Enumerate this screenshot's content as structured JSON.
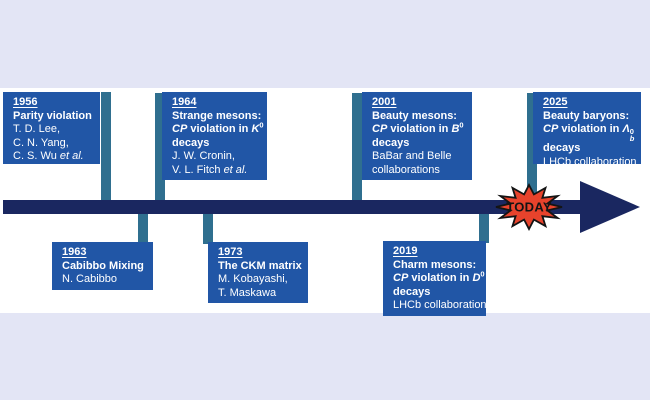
{
  "timeline": {
    "today_label": "TODAY",
    "boxes": [
      {
        "id": "1956",
        "position": "above",
        "year": "1956",
        "lines": [
          [
            {
              "t": "1956",
              "s": "u"
            }
          ],
          [
            {
              "t": "Parity violation",
              "s": "b"
            }
          ],
          [
            {
              "t": "T. D. Lee,",
              "s": "r"
            }
          ],
          [
            {
              "t": "C. N. Yang,",
              "s": "r"
            }
          ],
          [
            {
              "t": "C. S. Wu ",
              "s": "r"
            },
            {
              "t": "et al.",
              "s": "ri"
            }
          ]
        ]
      },
      {
        "id": "1963",
        "position": "below",
        "year": "1963",
        "lines": [
          [
            {
              "t": "1963",
              "s": "u"
            }
          ],
          [
            {
              "t": "Cabibbo Mixing",
              "s": "b"
            }
          ],
          [
            {
              "t": "N. Cabibbo",
              "s": "r"
            }
          ]
        ]
      },
      {
        "id": "1964",
        "position": "above",
        "year": "1964",
        "lines": [
          [
            {
              "t": "1964",
              "s": "u"
            }
          ],
          [
            {
              "t": "Strange mesons:",
              "s": "b"
            }
          ],
          [
            {
              "t": "CP",
              "s": "bi"
            },
            {
              "t": " violation in ",
              "s": "b"
            },
            {
              "t": "K",
              "s": "bi"
            },
            {
              "t": "0",
              "s": "sup"
            }
          ],
          [
            {
              "t": "decays",
              "s": "b"
            }
          ],
          [
            {
              "t": "J. W. Cronin,",
              "s": "r"
            }
          ],
          [
            {
              "t": "V. L. Fitch ",
              "s": "r"
            },
            {
              "t": "et al.",
              "s": "ri"
            }
          ]
        ]
      },
      {
        "id": "1973",
        "position": "below",
        "year": "1973",
        "lines": [
          [
            {
              "t": "1973",
              "s": "u"
            }
          ],
          [
            {
              "t": "The CKM matrix",
              "s": "b"
            }
          ],
          [
            {
              "t": "M. Kobayashi,",
              "s": "r"
            }
          ],
          [
            {
              "t": "T. Maskawa",
              "s": "r"
            }
          ]
        ]
      },
      {
        "id": "2001",
        "position": "above",
        "year": "2001",
        "lines": [
          [
            {
              "t": "2001",
              "s": "u"
            }
          ],
          [
            {
              "t": "Beauty mesons:",
              "s": "b"
            }
          ],
          [
            {
              "t": "CP",
              "s": "bi"
            },
            {
              "t": " violation in ",
              "s": "b"
            },
            {
              "t": "B",
              "s": "bi"
            },
            {
              "t": "0",
              "s": "sup"
            }
          ],
          [
            {
              "t": "decays",
              "s": "b"
            }
          ],
          [
            {
              "t": "BaBar and Belle",
              "s": "r"
            }
          ],
          [
            {
              "t": "collaborations",
              "s": "r"
            }
          ]
        ]
      },
      {
        "id": "2019",
        "position": "below",
        "year": "2019",
        "lines": [
          [
            {
              "t": "2019",
              "s": "u"
            }
          ],
          [
            {
              "t": "Charm mesons:",
              "s": "b"
            }
          ],
          [
            {
              "t": "CP",
              "s": "bi"
            },
            {
              "t": " violation in ",
              "s": "b"
            },
            {
              "t": "D",
              "s": "bi"
            },
            {
              "t": "0",
              "s": "sup"
            }
          ],
          [
            {
              "t": "decays",
              "s": "b"
            }
          ],
          [
            {
              "t": "LHCb collaboration",
              "s": "r"
            }
          ]
        ]
      },
      {
        "id": "2025",
        "position": "above",
        "year": "2025",
        "lines": [
          [
            {
              "t": "2025",
              "s": "u"
            }
          ],
          [
            {
              "t": "Beauty baryons:",
              "s": "b"
            }
          ],
          [
            {
              "t": "CP",
              "s": "bi"
            },
            {
              "t": " violation in ",
              "s": "b"
            },
            {
              "t": "Λ",
              "s": "bi"
            },
            {
              "t": "0|b",
              "s": "stack"
            }
          ],
          [
            {
              "t": "decays",
              "s": "b"
            }
          ],
          [
            {
              "t": "LHCb collaboration",
              "s": "r"
            }
          ]
        ]
      }
    ]
  },
  "colors": {
    "background_lavender": "#e3e5f5",
    "band_white": "#ffffff",
    "box_blue": "#2156a6",
    "connector_teal": "#2f6f8f",
    "arrow_navy": "#1a2760",
    "burst_red": "#e8432c",
    "box_text": "#ffffff"
  }
}
